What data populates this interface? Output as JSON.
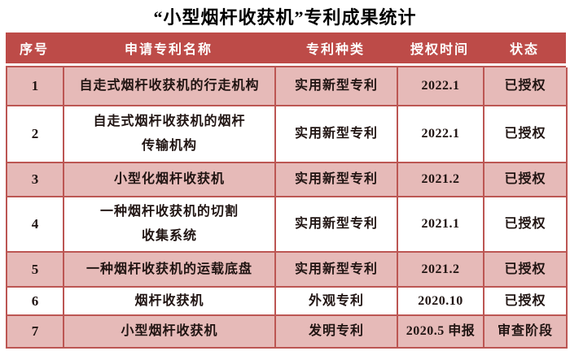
{
  "title": "“小型烟杆收获机”专利成果统计",
  "colors": {
    "header_bg": "#BD4B48",
    "row_pink": "#E6BAB8",
    "row_white": "#FFFFFF",
    "border": "#BC5653",
    "header_text": "#FFFFFF",
    "cell_text": "#201412",
    "title_text": "#000000"
  },
  "table": {
    "headers": [
      "序号",
      "申请专利名称",
      "专利种类",
      "授权时间",
      "状态"
    ],
    "rows": [
      {
        "no": "1",
        "name": "自走式烟杆收获机的行走机构",
        "type": "实用新型专利",
        "time": "2022.1",
        "status": "已授权"
      },
      {
        "no": "2",
        "name": "自走式烟杆收获机的烟杆\n传输机构",
        "type": "实用新型专利",
        "time": "2022.1",
        "status": "已授权"
      },
      {
        "no": "3",
        "name": "小型化烟杆收获机",
        "type": "实用新型专利",
        "time": "2021.2",
        "status": "已授权"
      },
      {
        "no": "4",
        "name": "一种烟杆收获机的切割\n收集系统",
        "type": "实用新型专利",
        "time": "2021.1",
        "status": "已授权"
      },
      {
        "no": "5",
        "name": "一种烟杆收获机的运载底盘",
        "type": "实用新型专利",
        "time": "2021.2",
        "status": "已授权"
      },
      {
        "no": "6",
        "name": "烟杆收获机",
        "type": "外观专利",
        "time": "2020.10",
        "status": "已授权"
      },
      {
        "no": "7",
        "name": "小型烟杆收获机",
        "type": "发明专利",
        "time": "2020.5 申报",
        "status": "审查阶段"
      }
    ]
  }
}
